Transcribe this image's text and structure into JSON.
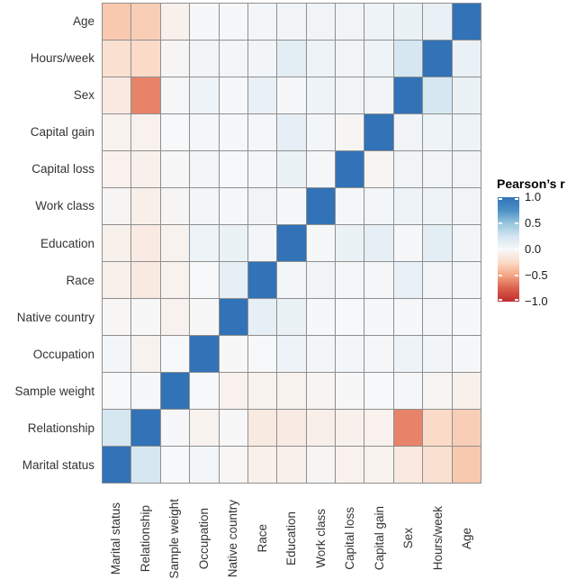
{
  "figure": {
    "kind": "correlation-heatmap"
  },
  "legend": {
    "title": "Pearson’s r",
    "tick_labels": [
      "1.0",
      "0.5",
      "0.0",
      "−0.5",
      "−1.0"
    ],
    "tick_values": [
      1.0,
      0.5,
      0.0,
      -0.5,
      -1.0
    ]
  },
  "colors": {
    "cmap_stops": [
      [
        -1.0,
        "#c02c2e"
      ],
      [
        -0.75,
        "#d95f4c"
      ],
      [
        -0.5,
        "#f4a583"
      ],
      [
        -0.25,
        "#fbdbc8"
      ],
      [
        0.0,
        "#f7f8f9"
      ],
      [
        0.25,
        "#d3e5f0"
      ],
      [
        0.5,
        "#97c6de"
      ],
      [
        0.75,
        "#4b90c4"
      ],
      [
        1.0,
        "#3273b7"
      ]
    ],
    "grid_line": "#8f8f8f",
    "label_text": "#333333",
    "background": "#ffffff"
  },
  "chart_data": {
    "type": "heatmap",
    "title": "",
    "legend_title": "Pearson’s r",
    "vmin": -1.0,
    "vmax": 1.0,
    "legend_ticks": [
      1.0,
      0.5,
      0.0,
      -0.5,
      -1.0
    ],
    "rows": [
      "Age",
      "Hours/week",
      "Sex",
      "Capital gain",
      "Capital loss",
      "Work class",
      "Education",
      "Race",
      "Native country",
      "Occupation",
      "Sample weight",
      "Relationship",
      "Marital status"
    ],
    "columns": [
      "Marital status",
      "Relationship",
      "Sample weight",
      "Occupation",
      "Native country",
      "Race",
      "Education",
      "Work class",
      "Capital loss",
      "Capital gain",
      "Sex",
      "Hours/week",
      "Age"
    ],
    "values": [
      [
        -0.34,
        -0.31,
        -0.07,
        0.01,
        0.01,
        0.03,
        0.04,
        0.05,
        0.05,
        0.07,
        0.08,
        0.09,
        1.0
      ],
      [
        -0.21,
        -0.25,
        -0.03,
        0.04,
        0.03,
        0.04,
        0.14,
        0.06,
        0.05,
        0.06,
        0.23,
        1.0,
        0.09
      ],
      [
        -0.13,
        -0.62,
        0.02,
        0.06,
        0.01,
        0.09,
        0.01,
        0.07,
        0.05,
        0.05,
        1.0,
        0.23,
        0.08
      ],
      [
        -0.05,
        -0.06,
        0.0,
        0.02,
        0.01,
        0.02,
        0.12,
        0.03,
        -0.03,
        1.0,
        0.05,
        0.06,
        0.07
      ],
      [
        -0.06,
        -0.07,
        -0.01,
        0.03,
        0.0,
        0.02,
        0.08,
        0.02,
        1.0,
        -0.03,
        0.05,
        0.05,
        0.05
      ],
      [
        -0.03,
        -0.08,
        -0.03,
        0.03,
        0.01,
        0.05,
        0.01,
        1.0,
        0.02,
        0.03,
        0.07,
        0.06,
        0.05
      ],
      [
        -0.07,
        -0.11,
        -0.05,
        0.07,
        0.08,
        0.03,
        1.0,
        0.01,
        0.08,
        0.12,
        0.01,
        0.14,
        0.04
      ],
      [
        -0.07,
        -0.12,
        -0.05,
        0.0,
        0.12,
        1.0,
        0.03,
        0.05,
        0.02,
        0.02,
        0.09,
        0.04,
        0.03
      ],
      [
        -0.02,
        -0.01,
        -0.06,
        -0.01,
        1.0,
        0.12,
        0.08,
        0.01,
        0.0,
        0.01,
        0.01,
        0.03,
        0.01
      ],
      [
        0.03,
        -0.05,
        0.0,
        1.0,
        -0.01,
        0.0,
        0.07,
        0.03,
        0.03,
        0.02,
        0.06,
        0.04,
        0.01
      ],
      [
        0.0,
        0.01,
        1.0,
        0.0,
        -0.06,
        -0.05,
        -0.05,
        -0.03,
        -0.01,
        0.0,
        0.02,
        -0.03,
        -0.07
      ],
      [
        0.23,
        1.0,
        0.01,
        -0.05,
        -0.01,
        -0.12,
        -0.11,
        -0.08,
        -0.07,
        -0.06,
        -0.62,
        -0.25,
        -0.31
      ],
      [
        1.0,
        0.23,
        0.0,
        0.03,
        -0.02,
        -0.07,
        -0.07,
        -0.03,
        -0.06,
        -0.05,
        -0.13,
        -0.21,
        -0.34
      ]
    ]
  }
}
